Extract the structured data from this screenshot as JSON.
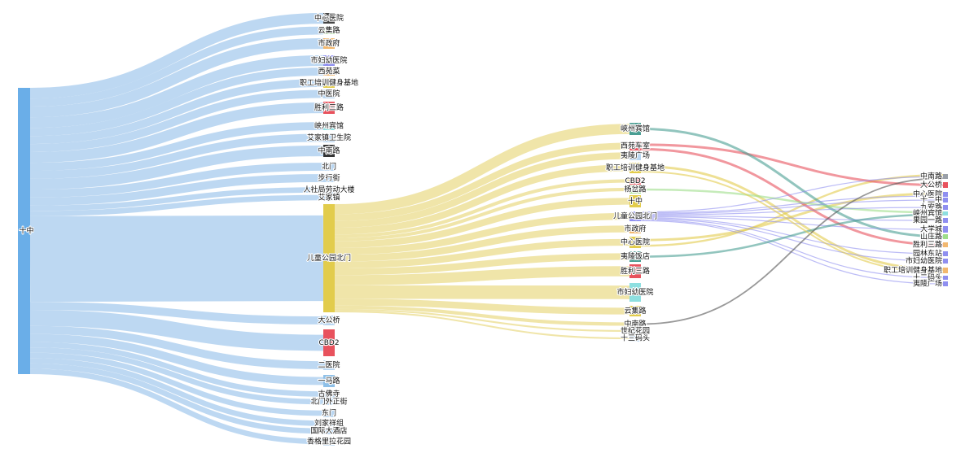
{
  "chart_data": {
    "type": "sankey",
    "title": "",
    "colors": {
      "source_band": "#b9d6f1",
      "source_node": "#6aaee8",
      "hub_band": "#eee2a0",
      "hub_node": "#e2cc4c",
      "red": "#e8525d",
      "gray": "#7f7f7f",
      "blue": "#8f8ff0",
      "green": "#9ede8a",
      "teal": "#4a9e93",
      "cyan": "#8edfe0"
    },
    "columns": [
      {
        "stage": 0,
        "nodes": [
          {
            "name": "十中",
            "color": "#6aaee8"
          }
        ]
      },
      {
        "stage": 1,
        "nodes": [
          {
            "name": "中心医院",
            "color": "#444444"
          },
          {
            "name": "云集路",
            "color": "#9ede8a"
          },
          {
            "name": "市政府",
            "color": "#f2b870"
          },
          {
            "name": "市妇幼医院",
            "color": "#8f8ff0"
          },
          {
            "name": "西苑菜",
            "color": "#f2b870"
          },
          {
            "name": "职工培训健身基地",
            "color": "#e2cc4c"
          },
          {
            "name": "中医院",
            "color": "#b9d6f1"
          },
          {
            "name": "胜利三路",
            "color": "#e8525d"
          },
          {
            "name": "峡州宾馆",
            "color": "#8edfe0"
          },
          {
            "name": "艾家镇卫生院",
            "color": "#b9d6f1"
          },
          {
            "name": "中南路",
            "color": "#333333"
          },
          {
            "name": "北门",
            "color": "#b9d6f1"
          },
          {
            "name": "步行街",
            "color": "#b9d6f1"
          },
          {
            "name": "人社局劳动大楼",
            "color": "#b9d6f1"
          },
          {
            "name": "艾家镇",
            "color": "#b9d6f1"
          },
          {
            "name": "儿童公园北门",
            "color": "#e2cc4c"
          },
          {
            "name": "大公桥",
            "color": "#b9d6f1"
          },
          {
            "name": "CBD2",
            "color": "#e8525d"
          },
          {
            "name": "二医院",
            "color": "#b9d6f1"
          },
          {
            "name": "一马路",
            "color": "#8ec0e8"
          },
          {
            "name": "古佛寺",
            "color": "#b9d6f1"
          },
          {
            "name": "北门外正街",
            "color": "#b9d6f1"
          },
          {
            "name": "东门",
            "color": "#b9d6f1"
          },
          {
            "name": "刘家祥组",
            "color": "#b9d6f1"
          },
          {
            "name": "国际大酒店",
            "color": "#b9d6f1"
          },
          {
            "name": "香格里拉花园",
            "color": "#b9d6f1"
          }
        ]
      },
      {
        "stage": 2,
        "nodes": [
          {
            "name": "峡州宾馆",
            "color": "#4a9e93"
          },
          {
            "name": "西苑车室",
            "color": "#e8525d"
          },
          {
            "name": "夷陵广场",
            "color": "#b9d6f1"
          },
          {
            "name": "职工培训健身基地",
            "color": "#e2cc4c"
          },
          {
            "name": "CBD2",
            "color": "#e8525d"
          },
          {
            "name": "杨岔路",
            "color": "#9ede8a"
          },
          {
            "name": "十中",
            "color": "#e2cc4c"
          },
          {
            "name": "儿童公园北门",
            "color": "#8f8ff0"
          },
          {
            "name": "市政府",
            "color": "#f2b870"
          },
          {
            "name": "中心医院",
            "color": "#e2cc4c"
          },
          {
            "name": "夷陵饭店",
            "color": "#4a9e93"
          },
          {
            "name": "胜利三路",
            "color": "#e8525d"
          },
          {
            "name": "市妇幼医院",
            "color": "#8edfe0"
          },
          {
            "name": "云集路",
            "color": "#e2cc4c"
          },
          {
            "name": "中南路",
            "color": "#555555"
          },
          {
            "name": "世纪花园",
            "color": "#b9d6f1"
          },
          {
            "name": "十三码头",
            "color": "#b9d6f1"
          }
        ]
      },
      {
        "stage": 3,
        "nodes": [
          {
            "name": "中南路",
            "color": "#9aa0a8"
          },
          {
            "name": "大公桥",
            "color": "#e8525d"
          },
          {
            "name": "中心医院",
            "color": "#8f8ff0"
          },
          {
            "name": "十二中",
            "color": "#8f8ff0"
          },
          {
            "name": "九安路",
            "color": "#8f8ff0"
          },
          {
            "name": "峡州宾馆",
            "color": "#8edfe0"
          },
          {
            "name": "果园一路",
            "color": "#8f8ff0"
          },
          {
            "name": "大学城",
            "color": "#8f8ff0"
          },
          {
            "name": "山庄路",
            "color": "#9ede8a"
          },
          {
            "name": "胜利三路",
            "color": "#f2b870"
          },
          {
            "name": "园林东站",
            "color": "#8f8ff0"
          },
          {
            "name": "市妇幼医院",
            "color": "#8f8ff0"
          },
          {
            "name": "职工培训健身基地",
            "color": "#f2b870"
          },
          {
            "name": "十二码头",
            "color": "#8f8ff0"
          },
          {
            "name": "夷陵广场",
            "color": "#8f8ff0"
          }
        ]
      }
    ],
    "links": [
      {
        "source": "十中",
        "target": "中心医院",
        "value": 4
      },
      {
        "source": "十中",
        "target": "云集路",
        "value": 3
      },
      {
        "source": "十中",
        "target": "市政府",
        "value": 4
      },
      {
        "source": "十中",
        "target": "市妇幼医院",
        "value": 4
      },
      {
        "source": "十中",
        "target": "西苑菜",
        "value": 3
      },
      {
        "source": "十中",
        "target": "职工培训健身基地",
        "value": 3
      },
      {
        "source": "十中",
        "target": "中医院",
        "value": 3
      },
      {
        "source": "十中",
        "target": "胜利三路",
        "value": 4
      },
      {
        "source": "十中",
        "target": "峡州宾馆",
        "value": 3
      },
      {
        "source": "十中",
        "target": "艾家镇卫生院",
        "value": 3
      },
      {
        "source": "十中",
        "target": "中南路",
        "value": 4
      },
      {
        "source": "十中",
        "target": "北门",
        "value": 3
      },
      {
        "source": "十中",
        "target": "步行街",
        "value": 3
      },
      {
        "source": "十中",
        "target": "人社局劳动大楼",
        "value": 2
      },
      {
        "source": "十中",
        "target": "艾家镇",
        "value": 2
      },
      {
        "source": "十中",
        "target": "儿童公园北门",
        "value": 32
      },
      {
        "source": "十中",
        "target": "大公桥",
        "value": 3
      },
      {
        "source": "十中",
        "target": "CBD2",
        "value": 6
      },
      {
        "source": "十中",
        "target": "二医院",
        "value": 3
      },
      {
        "source": "十中",
        "target": "一马路",
        "value": 3
      },
      {
        "source": "十中",
        "target": "古佛寺",
        "value": 2
      },
      {
        "source": "十中",
        "target": "北门外正街",
        "value": 2
      },
      {
        "source": "十中",
        "target": "东门",
        "value": 2
      },
      {
        "source": "十中",
        "target": "刘家祥组",
        "value": 2
      },
      {
        "source": "十中",
        "target": "国际大酒店",
        "value": 2
      },
      {
        "source": "十中",
        "target": "香格里拉花园",
        "value": 2
      },
      {
        "source": "儿童公园北门",
        "target": "峡州宾馆",
        "value": 3
      },
      {
        "source": "儿童公园北门",
        "target": "西苑车室",
        "value": 2
      },
      {
        "source": "儿童公园北门",
        "target": "夷陵广场",
        "value": 2
      },
      {
        "source": "儿童公园北门",
        "target": "职工培训健身基地",
        "value": 2
      },
      {
        "source": "儿童公园北门",
        "target": "CBD2",
        "value": 1
      },
      {
        "source": "儿童公园北门",
        "target": "杨岔路",
        "value": 1
      },
      {
        "source": "儿童公园北门",
        "target": "十中",
        "value": 2
      },
      {
        "source": "儿童公园北门",
        "target": "儿童公园北门",
        "value": 2
      },
      {
        "source": "儿童公园北门",
        "target": "市政府",
        "value": 2
      },
      {
        "source": "儿童公园北门",
        "target": "中心医院",
        "value": 2
      },
      {
        "source": "儿童公园北门",
        "target": "夷陵饭店",
        "value": 2
      },
      {
        "source": "儿童公园北门",
        "target": "胜利三路",
        "value": 3
      },
      {
        "source": "儿童公园北门",
        "target": "市妇幼医院",
        "value": 4
      },
      {
        "source": "儿童公园北门",
        "target": "云集路",
        "value": 2
      },
      {
        "source": "儿童公园北门",
        "target": "中南路",
        "value": 1
      },
      {
        "source": "儿童公园北门",
        "target": "世纪花园",
        "value": 0.5
      },
      {
        "source": "儿童公园北门",
        "target": "十三码头",
        "value": 0.5
      },
      {
        "source": "中心医院",
        "target": "中心医院",
        "value": 0.6
      },
      {
        "source": "中心医院",
        "target": "夷陵饭店",
        "value": 0.5
      },
      {
        "source": "中心医院",
        "target": "中南路",
        "value": 0.4
      },
      {
        "source": "云集路",
        "target": "杨岔路",
        "value": 0.5
      },
      {
        "source": "市妇幼医院",
        "target": "儿童公园北门",
        "value": 0.5
      },
      {
        "source": "职工培训健身基地",
        "target": "职工培训健身基地",
        "value": 0.5
      },
      {
        "source": "胜利三路",
        "target": "西苑车室",
        "value": 0.5
      },
      {
        "source": "峡州宾馆",
        "target": "西苑车室",
        "value": 0.4
      },
      {
        "source": "西苑车室",
        "target": "大公桥",
        "value": 1.2
      },
      {
        "source": "西苑车室",
        "target": "胜利三路",
        "value": 0.5
      },
      {
        "source": "峡州宾馆",
        "target": "山庄路",
        "value": 0.3
      },
      {
        "source": "杨岔路",
        "target": "峡州宾馆",
        "value": 0.3
      },
      {
        "source": "儿童公园北门",
        "target": "中南路",
        "value": 0.3
      },
      {
        "source": "儿童公园北门",
        "target": "中心医院",
        "value": 0.3
      },
      {
        "source": "儿童公园北门",
        "target": "十二中",
        "value": 0.3
      },
      {
        "source": "儿童公园北门",
        "target": "九安路",
        "value": 0.3
      },
      {
        "source": "儿童公园北门",
        "target": "果园一路",
        "value": 0.3
      },
      {
        "source": "儿童公园北门",
        "target": "大学城",
        "value": 0.3
      },
      {
        "source": "儿童公园北门",
        "target": "园林东站",
        "value": 0.3
      },
      {
        "source": "儿童公园北门",
        "target": "市妇幼医院",
        "value": 0.3
      },
      {
        "source": "儿童公园北门",
        "target": "十二码头",
        "value": 0.3
      },
      {
        "source": "儿童公园北门",
        "target": "夷陵广场",
        "value": 0.3
      },
      {
        "source": "夷陵饭店",
        "target": "峡州宾馆",
        "value": 0.3
      },
      {
        "source": "中南路",
        "target": "中南路",
        "value": 0.3
      },
      {
        "source": "职工培训健身基地",
        "target": "职工培训健身基地",
        "value": 0.2
      }
    ]
  }
}
